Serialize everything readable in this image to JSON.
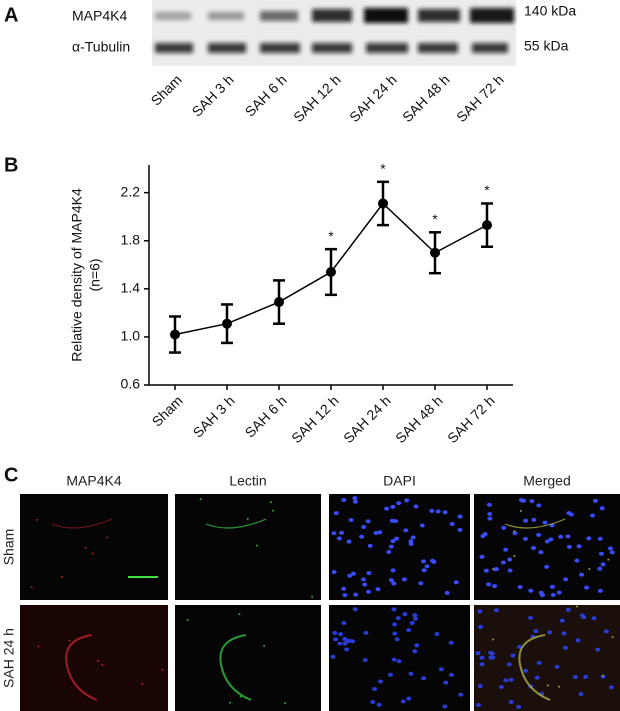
{
  "panel_a": {
    "letter": "A",
    "rows": [
      "MAP4K4",
      "α-Tubulin"
    ],
    "sizes": [
      "140 kDa",
      "55 kDa"
    ],
    "lanes": [
      "Sham",
      "SAH 3 h",
      "SAH 6 h",
      "SAH 12 h",
      "SAH 24 h",
      "SAH 48 h",
      "SAH 72 h"
    ]
  },
  "panel_b": {
    "letter": "B"
  },
  "chart_data": {
    "type": "line",
    "ylabel": "Relative density of MAP4K4",
    "ylabel_sub": "(n=6)",
    "categories": [
      "Sham",
      "SAH 3 h",
      "SAH 6 h",
      "SAH 12 h",
      "SAH 24 h",
      "SAH 48 h",
      "SAH 72 h"
    ],
    "values": [
      1.02,
      1.11,
      1.29,
      1.54,
      2.11,
      1.7,
      1.93
    ],
    "errors": [
      0.15,
      0.16,
      0.18,
      0.19,
      0.18,
      0.17,
      0.18
    ],
    "significance": [
      null,
      null,
      null,
      "*",
      "*",
      "*",
      "*"
    ],
    "color": "#000000",
    "ylim": [
      0.6,
      2.43
    ],
    "yticks": [
      0.6,
      {
        "value": 1,
        "label": "1.0"
      },
      1.4,
      1.8,
      2.2
    ]
  },
  "panel_c": {
    "letter": "C",
    "columns": [
      "MAP4K4",
      "Lectin",
      "DAPI",
      "Merged"
    ],
    "rows": [
      "Sham",
      "SAH 24 h"
    ]
  }
}
